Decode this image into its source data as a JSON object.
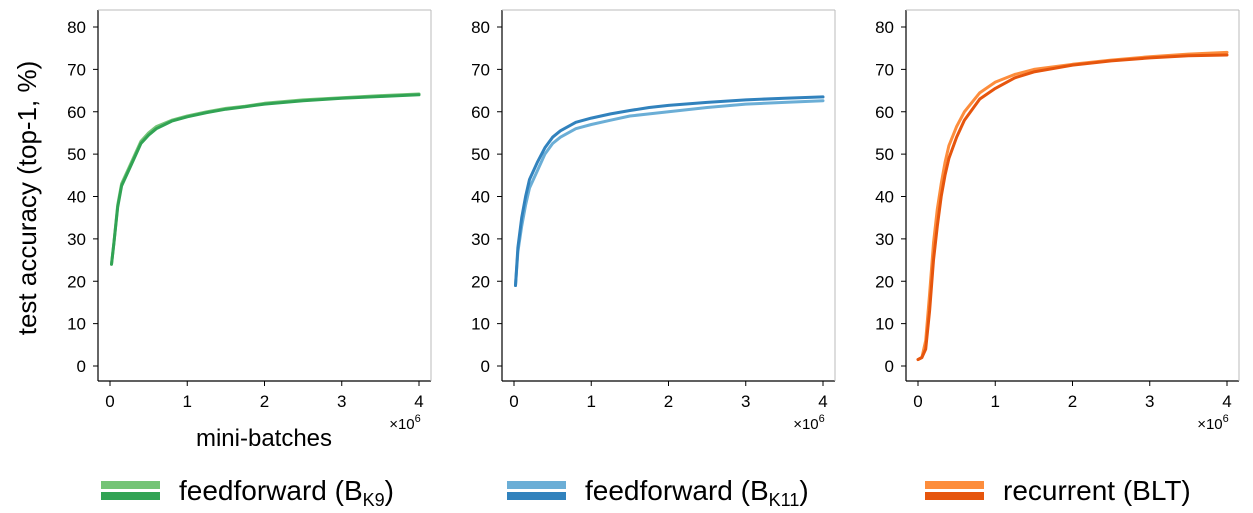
{
  "figure": {
    "ylabel": "test accuracy (top-1, %)",
    "xlabel": "mini-batches",
    "x_multiplier": "×10",
    "x_multiplier_exp": "6",
    "colors": {
      "green_light": "#74c476",
      "green_dark": "#31a354",
      "blue_light": "#6baed6",
      "blue_dark": "#3182bd",
      "orange_light": "#fd8d3c",
      "orange_dark": "#e6550d"
    }
  },
  "legend": [
    {
      "prefix": "feedforward (B",
      "sub": "K9",
      "suffix": ")",
      "colors": [
        "#74c476",
        "#31a354"
      ]
    },
    {
      "prefix": "feedforward (B",
      "sub": "K11",
      "suffix": ")",
      "colors": [
        "#6baed6",
        "#3182bd"
      ]
    },
    {
      "prefix": "recurrent (BLT)",
      "sub": "",
      "suffix": "",
      "colors": [
        "#fd8d3c",
        "#e6550d"
      ]
    }
  ],
  "chart_data": [
    {
      "type": "line",
      "ylabel": "test accuracy (top-1, %)",
      "xlabel": "mini-batches",
      "xlim": [
        0,
        4
      ],
      "ylim": [
        0,
        80
      ],
      "x_ticks": [
        "0",
        "1",
        "2",
        "3",
        "4"
      ],
      "y_ticks": [
        "0",
        "10",
        "20",
        "30",
        "40",
        "50",
        "60",
        "70",
        "80"
      ],
      "x_scale_label": "×10^6",
      "series": [
        {
          "color": "#74c476",
          "x": [
            0.02,
            0.05,
            0.1,
            0.15,
            0.2,
            0.3,
            0.4,
            0.5,
            0.6,
            0.8,
            1.0,
            1.25,
            1.5,
            1.75,
            2.0,
            2.5,
            3.0,
            3.5,
            4.0
          ],
          "y": [
            24,
            29,
            38,
            43,
            45,
            49,
            53,
            55,
            56.5,
            58,
            59,
            60,
            60.8,
            61.3,
            62,
            62.8,
            63.3,
            63.8,
            64.2
          ]
        },
        {
          "color": "#31a354",
          "x": [
            0.02,
            0.05,
            0.1,
            0.15,
            0.2,
            0.3,
            0.4,
            0.5,
            0.6,
            0.8,
            1.0,
            1.25,
            1.5,
            1.75,
            2.0,
            2.5,
            3.0,
            3.5,
            4.0
          ],
          "y": [
            24,
            29,
            37.5,
            42.5,
            44.5,
            48.5,
            52.5,
            54.5,
            56,
            57.8,
            58.8,
            59.8,
            60.6,
            61.2,
            61.8,
            62.6,
            63.2,
            63.6,
            64
          ]
        }
      ]
    },
    {
      "type": "line",
      "xlim": [
        0,
        4
      ],
      "ylim": [
        0,
        80
      ],
      "x_ticks": [
        "0",
        "1",
        "2",
        "3",
        "4"
      ],
      "y_ticks": [
        "0",
        "10",
        "20",
        "30",
        "40",
        "50",
        "60",
        "70",
        "80"
      ],
      "x_scale_label": "×10^6",
      "series": [
        {
          "color": "#6baed6",
          "x": [
            0.02,
            0.05,
            0.1,
            0.15,
            0.2,
            0.3,
            0.4,
            0.5,
            0.6,
            0.8,
            1.0,
            1.25,
            1.5,
            1.75,
            2.0,
            2.5,
            3.0,
            3.5,
            4.0
          ],
          "y": [
            19,
            27,
            33,
            38,
            42,
            46,
            50,
            52.5,
            54,
            56,
            57,
            58,
            59,
            59.5,
            60,
            61,
            61.8,
            62.2,
            62.6
          ]
        },
        {
          "color": "#3182bd",
          "x": [
            0.02,
            0.05,
            0.1,
            0.15,
            0.2,
            0.3,
            0.4,
            0.5,
            0.6,
            0.8,
            1.0,
            1.25,
            1.5,
            1.75,
            2.0,
            2.5,
            3.0,
            3.5,
            4.0
          ],
          "y": [
            19,
            28,
            35,
            40,
            44,
            48,
            51.5,
            54,
            55.5,
            57.5,
            58.5,
            59.5,
            60.3,
            61,
            61.5,
            62.2,
            62.8,
            63.2,
            63.5
          ]
        }
      ]
    },
    {
      "type": "line",
      "xlim": [
        0,
        4
      ],
      "ylim": [
        0,
        80
      ],
      "x_ticks": [
        "0",
        "1",
        "2",
        "3",
        "4"
      ],
      "y_ticks": [
        "0",
        "10",
        "20",
        "30",
        "40",
        "50",
        "60",
        "70",
        "80"
      ],
      "x_scale_label": "×10^6",
      "series": [
        {
          "color": "#fd8d3c",
          "x": [
            0.0,
            0.05,
            0.1,
            0.15,
            0.2,
            0.25,
            0.3,
            0.35,
            0.4,
            0.5,
            0.6,
            0.8,
            1.0,
            1.25,
            1.5,
            2.0,
            2.5,
            3.0,
            3.5,
            4.0
          ],
          "y": [
            1.5,
            2,
            6,
            17,
            29,
            37,
            43,
            48,
            52,
            56.5,
            60,
            64.5,
            67,
            68.8,
            70,
            71.2,
            72.2,
            73,
            73.6,
            74
          ]
        },
        {
          "color": "#e6550d",
          "x": [
            0.0,
            0.05,
            0.1,
            0.15,
            0.2,
            0.25,
            0.3,
            0.35,
            0.4,
            0.5,
            0.6,
            0.8,
            1.0,
            1.25,
            1.5,
            2.0,
            2.5,
            3.0,
            3.5,
            4.0
          ],
          "y": [
            1.5,
            2,
            4,
            13,
            25,
            33,
            40,
            45,
            49,
            54,
            58,
            63,
            65.5,
            68,
            69.4,
            71,
            72,
            72.7,
            73.2,
            73.4
          ]
        }
      ]
    }
  ]
}
